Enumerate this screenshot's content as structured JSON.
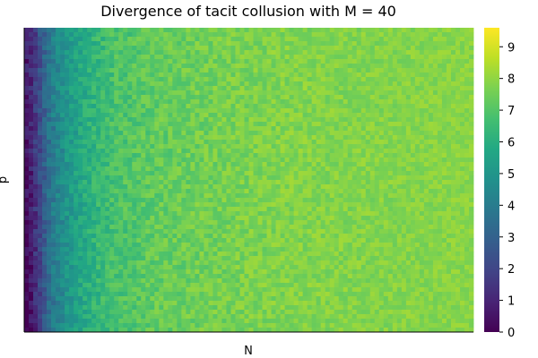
{
  "chart_data": {
    "type": "heatmap",
    "title": "Divergence of tacit collusion with M = 40",
    "xlabel": "N",
    "ylabel": "p",
    "colormap": "viridis",
    "colorbar": {
      "range": [
        0,
        9.6
      ],
      "ticks": [
        0,
        1,
        2,
        3,
        4,
        5,
        6,
        7,
        8,
        9
      ],
      "tick_labels": [
        "0",
        "1",
        "2",
        "3",
        "4",
        "5",
        "6",
        "7",
        "8",
        "9"
      ]
    },
    "grid": false,
    "x_ticks_shown": false,
    "y_ticks_shown": false,
    "approx_columns": 100,
    "approx_rows": 68,
    "value_profile": {
      "description_of_trend": "values rise steeply with N from near 0 at the left edge to about 7.5-8.2 by the middle of the N range, then stay roughly flat; values near the left edge are lower at low p",
      "n_fraction_vs_typical_value": [
        [
          0.0,
          0.7
        ],
        [
          0.02,
          1.5
        ],
        [
          0.04,
          2.8
        ],
        [
          0.06,
          4.0
        ],
        [
          0.1,
          5.2
        ],
        [
          0.15,
          6.2
        ],
        [
          0.2,
          6.8
        ],
        [
          0.3,
          7.3
        ],
        [
          0.45,
          7.6
        ],
        [
          0.6,
          7.8
        ],
        [
          0.8,
          7.8
        ],
        [
          1.0,
          7.9
        ]
      ]
    }
  }
}
